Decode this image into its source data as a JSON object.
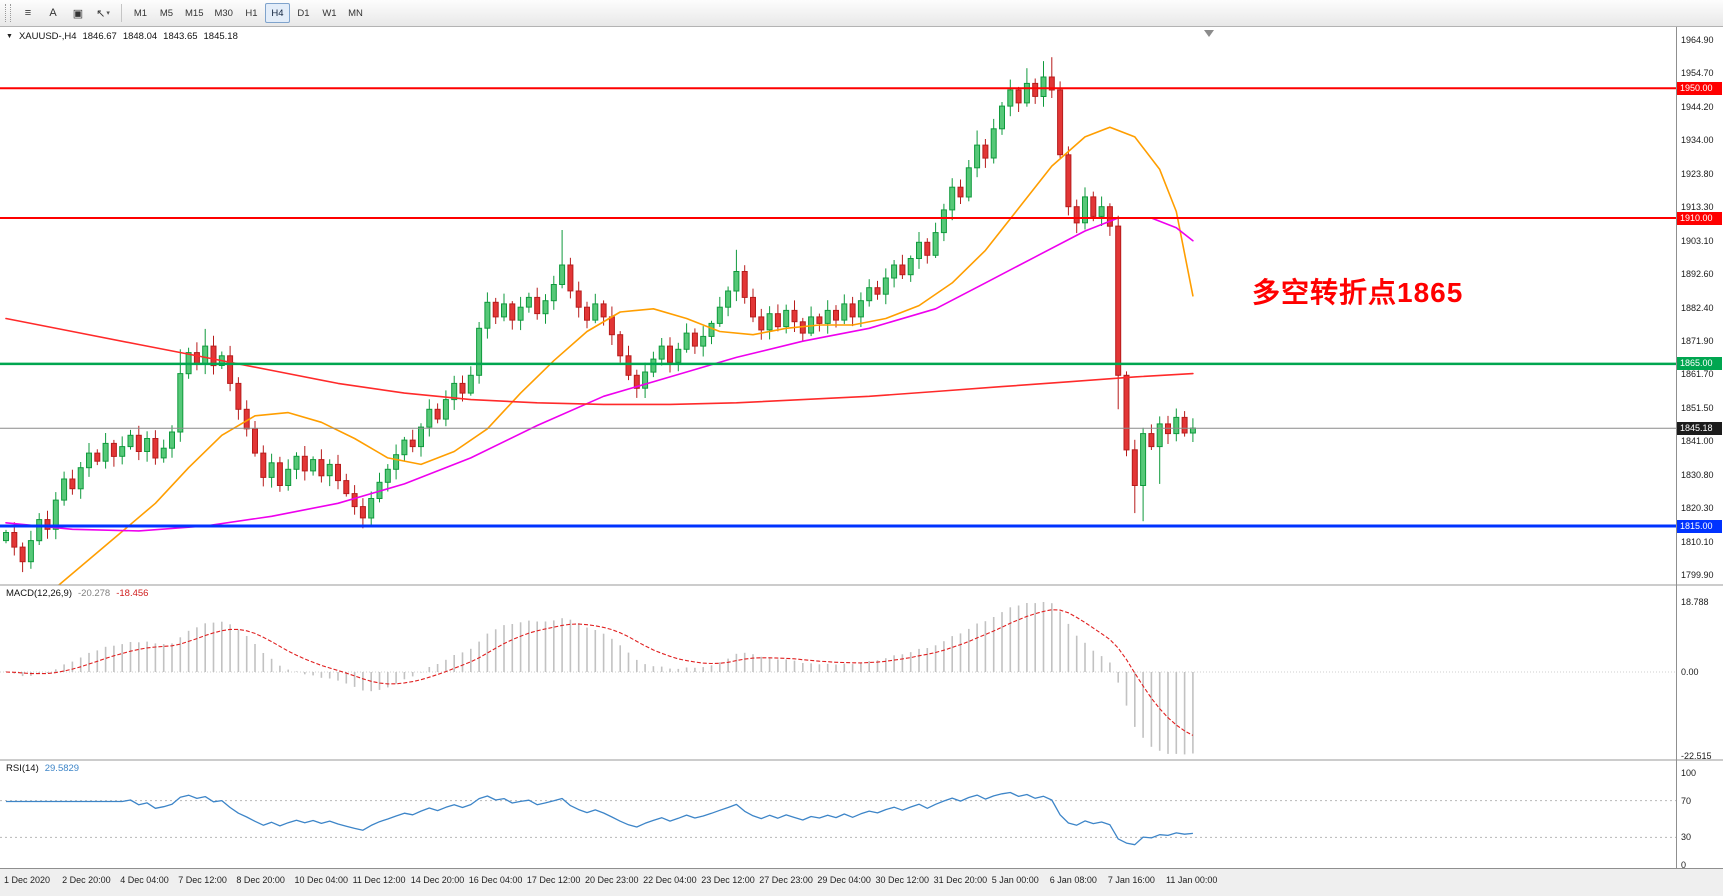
{
  "toolbar": {
    "tools": [
      {
        "name": "fibonacci-tool",
        "glyph": "≡"
      },
      {
        "name": "text-tool",
        "glyph": "A"
      },
      {
        "name": "label-tool",
        "glyph": "▣"
      },
      {
        "name": "arrow-tool",
        "glyph": "↖",
        "caret": "▾"
      }
    ],
    "timeframes": [
      "M1",
      "M5",
      "M15",
      "M30",
      "H1",
      "H4",
      "D1",
      "W1",
      "MN"
    ],
    "active_timeframe": "H4"
  },
  "chart": {
    "menu_glyph": "▼",
    "symbol_label": "XAUUSD-,H4",
    "open": "1846.67",
    "high": "1848.04",
    "low": "1843.65",
    "close": "1845.18",
    "annotation": {
      "text": "多空转折点1865",
      "color": "#ff0000"
    }
  },
  "chart_data": {
    "type": "candlestick",
    "symbol": "XAUUSD-",
    "timeframe": "H4",
    "y_range": [
      1799.9,
      1964.9
    ],
    "price_axis_labels": [
      "1964.90",
      "1954.70",
      "1944.20",
      "1934.00",
      "1923.80",
      "1913.30",
      "1903.10",
      "1892.60",
      "1882.40",
      "1871.90",
      "1861.70",
      "1851.50",
      "1841.00",
      "1830.80",
      "1820.30",
      "1810.10",
      "1799.90"
    ],
    "time_axis_labels": [
      "1 Dec 2020",
      "2 Dec 20:00",
      "4 Dec 04:00",
      "7 Dec 12:00",
      "8 Dec 20:00",
      "10 Dec 04:00",
      "11 Dec 12:00",
      "14 Dec 20:00",
      "16 Dec 04:00",
      "17 Dec 12:00",
      "20 Dec 23:00",
      "22 Dec 04:00",
      "23 Dec 12:00",
      "27 Dec 23:00",
      "29 Dec 04:00",
      "30 Dec 12:00",
      "31 Dec 20:00",
      "5 Jan 00:00",
      "6 Jan 08:00",
      "7 Jan 16:00",
      "11 Jan 00:00"
    ],
    "closes": [
      1813.0,
      1808.5,
      1804.0,
      1810.5,
      1817.0,
      1814.0,
      1823.0,
      1829.5,
      1826.5,
      1833.0,
      1837.5,
      1835.0,
      1840.5,
      1836.5,
      1839.5,
      1843.0,
      1838.0,
      1842.0,
      1836.0,
      1839.0,
      1844.0,
      1862.0,
      1868.5,
      1865.0,
      1870.5,
      1864.5,
      1867.5,
      1859.0,
      1851.0,
      1845.0,
      1837.5,
      1830.0,
      1834.5,
      1827.5,
      1832.5,
      1836.5,
      1832.0,
      1835.5,
      1830.5,
      1834.0,
      1829.0,
      1825.0,
      1821.0,
      1817.5,
      1823.5,
      1828.5,
      1832.5,
      1837.0,
      1841.5,
      1839.5,
      1845.5,
      1851.0,
      1848.0,
      1854.0,
      1859.0,
      1856.0,
      1861.5,
      1876.0,
      1884.0,
      1879.5,
      1883.5,
      1878.5,
      1882.5,
      1885.5,
      1880.5,
      1884.5,
      1889.5,
      1895.5,
      1887.5,
      1882.5,
      1878.5,
      1883.5,
      1879.5,
      1874.0,
      1867.5,
      1861.5,
      1857.5,
      1862.5,
      1866.5,
      1870.5,
      1865.5,
      1869.5,
      1874.5,
      1870.5,
      1873.5,
      1877.5,
      1882.5,
      1887.5,
      1893.5,
      1885.5,
      1879.5,
      1875.5,
      1880.5,
      1876.5,
      1881.5,
      1878.0,
      1874.5,
      1879.5,
      1877.5,
      1881.5,
      1878.5,
      1883.5,
      1879.5,
      1884.5,
      1888.5,
      1886.5,
      1891.5,
      1895.5,
      1892.5,
      1897.5,
      1902.5,
      1898.5,
      1905.5,
      1912.5,
      1919.5,
      1916.5,
      1925.5,
      1932.5,
      1928.5,
      1937.5,
      1944.5,
      1949.5,
      1945.5,
      1951.5,
      1947.5,
      1953.5,
      1949.5,
      1929.5,
      1913.5,
      1908.5,
      1916.5,
      1910.5,
      1913.5,
      1907.5,
      1861.5,
      1838.5,
      1827.5,
      1843.5,
      1839.5,
      1846.5,
      1843.5,
      1848.5,
      1843.7,
      1845.2
    ],
    "wick_overrides": {
      "2": {
        "l": 1800.8
      },
      "21": {
        "h": 1869.5
      },
      "24": {
        "h": 1875.8
      },
      "67": {
        "h": 1906.3
      },
      "88": {
        "h": 1900.2
      },
      "117": {
        "h": 1937.0
      },
      "123": {
        "h": 1956.2
      },
      "125": {
        "h": 1958.4
      },
      "126": {
        "h": 1959.6
      },
      "134": {
        "l": 1851.0
      },
      "136": {
        "l": 1819.0
      },
      "137": {
        "l": 1816.5
      },
      "139": {
        "l": 1828.0
      }
    },
    "moving_averages": [
      {
        "name": "ma-fast-orange",
        "color": "#ff9e00",
        "points": [
          [
            0,
            1786
          ],
          [
            6,
            1796
          ],
          [
            12,
            1809
          ],
          [
            18,
            1822
          ],
          [
            22,
            1833
          ],
          [
            26,
            1843
          ],
          [
            30,
            1849
          ],
          [
            34,
            1850
          ],
          [
            38,
            1847
          ],
          [
            42,
            1842
          ],
          [
            46,
            1836
          ],
          [
            50,
            1834
          ],
          [
            54,
            1838
          ],
          [
            58,
            1845
          ],
          [
            62,
            1856
          ],
          [
            66,
            1866
          ],
          [
            70,
            1875
          ],
          [
            74,
            1881
          ],
          [
            78,
            1882
          ],
          [
            82,
            1879
          ],
          [
            86,
            1875
          ],
          [
            90,
            1874
          ],
          [
            94,
            1876
          ],
          [
            98,
            1877
          ],
          [
            102,
            1877
          ],
          [
            106,
            1879
          ],
          [
            110,
            1883
          ],
          [
            114,
            1890
          ],
          [
            118,
            1900
          ],
          [
            122,
            1913
          ],
          [
            126,
            1926
          ],
          [
            130,
            1935
          ],
          [
            133,
            1938
          ],
          [
            136,
            1935
          ],
          [
            139,
            1925
          ],
          [
            141,
            1912
          ],
          [
            143,
            1886
          ]
        ]
      },
      {
        "name": "ma-slow-magenta",
        "color": "#ee00ee",
        "points": [
          [
            0,
            1816
          ],
          [
            8,
            1814
          ],
          [
            16,
            1813.5
          ],
          [
            24,
            1815
          ],
          [
            32,
            1818
          ],
          [
            40,
            1822
          ],
          [
            48,
            1828
          ],
          [
            56,
            1836
          ],
          [
            64,
            1846
          ],
          [
            72,
            1855
          ],
          [
            80,
            1861
          ],
          [
            88,
            1867
          ],
          [
            96,
            1872
          ],
          [
            104,
            1876
          ],
          [
            112,
            1882
          ],
          [
            118,
            1890
          ],
          [
            124,
            1898
          ],
          [
            130,
            1906
          ],
          [
            134,
            1910
          ],
          [
            138,
            1910
          ],
          [
            141,
            1907
          ],
          [
            143,
            1903
          ]
        ]
      },
      {
        "name": "ma-long-red",
        "color": "#ff2a2a",
        "points": [
          [
            0,
            1879
          ],
          [
            8,
            1875
          ],
          [
            16,
            1871
          ],
          [
            24,
            1867
          ],
          [
            32,
            1863
          ],
          [
            40,
            1859
          ],
          [
            48,
            1856
          ],
          [
            56,
            1854
          ],
          [
            64,
            1853
          ],
          [
            72,
            1852.5
          ],
          [
            80,
            1852.5
          ],
          [
            88,
            1853
          ],
          [
            96,
            1854
          ],
          [
            104,
            1855
          ],
          [
            112,
            1856.5
          ],
          [
            120,
            1858
          ],
          [
            128,
            1859.5
          ],
          [
            136,
            1861
          ],
          [
            143,
            1862
          ]
        ]
      }
    ],
    "levels": [
      {
        "price": 1950.0,
        "label": "1950.00",
        "color": "#fe0000",
        "width": 2
      },
      {
        "price": 1910.0,
        "label": "1910.00",
        "color": "#fe0000",
        "width": 2
      },
      {
        "price": 1865.0,
        "label": "1865.00",
        "color": "#00a650",
        "width": 2.5
      },
      {
        "price": 1815.0,
        "label": "1815.00",
        "color": "#0033ff",
        "width": 3
      }
    ],
    "current_price": {
      "price": 1845.18,
      "label": "1845.18",
      "color": "#1c1c1c"
    },
    "indicators": [
      {
        "type": "macd",
        "name": "MACD(12,26,9)",
        "value_main": "-20.278",
        "value_signal": "-18.456",
        "params": [
          12,
          26,
          9
        ],
        "axis_labels": [
          "18.788",
          "0.00",
          "-22.515"
        ],
        "axis_max": 18.788,
        "axis_min": -22.515
      },
      {
        "type": "rsi",
        "name": "RSI(14)",
        "value": "29.5829",
        "period": 14,
        "axis_labels": [
          "100",
          "70",
          "30",
          "0"
        ],
        "guide_levels": [
          70,
          30
        ]
      }
    ],
    "colors": {
      "up_body": "#56c878",
      "up_border": "#0f9a3c",
      "down_body": "#e23636",
      "down_border": "#b71c1c",
      "macd_histogram": "#c2c2c2",
      "macd_signal": "#e02020",
      "rsi_line": "#3d85c8"
    }
  }
}
